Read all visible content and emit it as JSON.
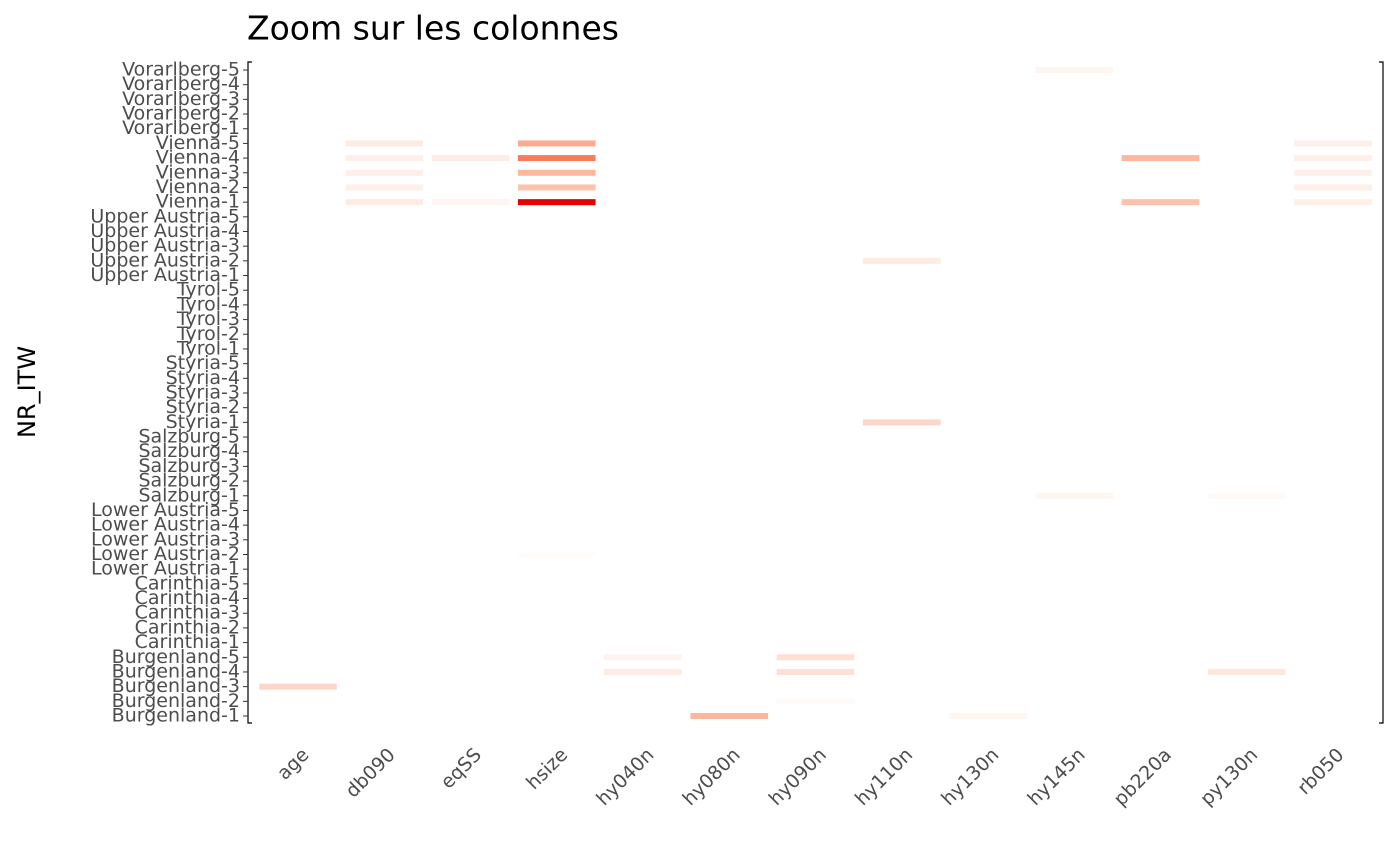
{
  "chart_data": {
    "type": "heatmap",
    "title": "Zoom sur les colonnes",
    "y_label": "NR_ITW",
    "columns": [
      "age",
      "db090",
      "eqSS",
      "hsize",
      "hy040n",
      "hy080n",
      "hy090n",
      "hy110n",
      "hy130n",
      "hy145n",
      "pb220a",
      "py130n",
      "rb050"
    ],
    "rows": [
      "Burgenland-1",
      "Burgenland-2",
      "Burgenland-3",
      "Burgenland-4",
      "Burgenland-5",
      "Carinthia-1",
      "Carinthia-2",
      "Carinthia-3",
      "Carinthia-4",
      "Carinthia-5",
      "Lower Austria-1",
      "Lower Austria-2",
      "Lower Austria-3",
      "Lower Austria-4",
      "Lower Austria-5",
      "Salzburg-1",
      "Salzburg-2",
      "Salzburg-3",
      "Salzburg-4",
      "Salzburg-5",
      "Styria-1",
      "Styria-2",
      "Styria-3",
      "Styria-4",
      "Styria-5",
      "Tyrol-1",
      "Tyrol-2",
      "Tyrol-3",
      "Tyrol-4",
      "Tyrol-5",
      "Upper Austria-1",
      "Upper Austria-2",
      "Upper Austria-3",
      "Upper Austria-4",
      "Upper Austria-5",
      "Vienna-1",
      "Vienna-2",
      "Vienna-3",
      "Vienna-4",
      "Vienna-5",
      "Vorarlberg-1",
      "Vorarlberg-2",
      "Vorarlberg-3",
      "Vorarlberg-4",
      "Vorarlberg-5"
    ],
    "values": [
      [
        0,
        0,
        0,
        0,
        0,
        0.35,
        0,
        0,
        0.05,
        0,
        0,
        0,
        0
      ],
      [
        0,
        0,
        0,
        0,
        0,
        0,
        0.03,
        0,
        0,
        0,
        0,
        0,
        0
      ],
      [
        0.2,
        0,
        0,
        0,
        0,
        0,
        0,
        0,
        0,
        0,
        0,
        0,
        0
      ],
      [
        0,
        0,
        0,
        0,
        0.1,
        0,
        0.15,
        0,
        0,
        0,
        0,
        0.12,
        0
      ],
      [
        0,
        0,
        0,
        0,
        0.06,
        0,
        0.15,
        0,
        0,
        0,
        0,
        0,
        0
      ],
      [
        0,
        0,
        0,
        0,
        0,
        0,
        0,
        0,
        0,
        0,
        0,
        0,
        0
      ],
      [
        0,
        0,
        0,
        0,
        0,
        0,
        0,
        0,
        0,
        0,
        0,
        0,
        0
      ],
      [
        0,
        0,
        0,
        0,
        0,
        0,
        0,
        0,
        0,
        0,
        0,
        0,
        0
      ],
      [
        0,
        0,
        0,
        0,
        0,
        0,
        0,
        0,
        0,
        0,
        0,
        0,
        0
      ],
      [
        0,
        0,
        0,
        0,
        0,
        0,
        0,
        0,
        0,
        0,
        0,
        0,
        0
      ],
      [
        0,
        0,
        0,
        0,
        0,
        0,
        0,
        0,
        0,
        0,
        0,
        0,
        0
      ],
      [
        0,
        0,
        0,
        0.02,
        0,
        0,
        0,
        0,
        0,
        0,
        0,
        0,
        0
      ],
      [
        0,
        0,
        0,
        0,
        0,
        0,
        0,
        0,
        0,
        0,
        0,
        0,
        0
      ],
      [
        0,
        0,
        0,
        0,
        0,
        0,
        0,
        0,
        0,
        0,
        0,
        0,
        0
      ],
      [
        0,
        0,
        0,
        0,
        0,
        0,
        0,
        0,
        0,
        0,
        0,
        0,
        0
      ],
      [
        0,
        0,
        0,
        0,
        0,
        0,
        0,
        0,
        0,
        0.05,
        0,
        0.03,
        0
      ],
      [
        0,
        0,
        0,
        0,
        0,
        0,
        0,
        0,
        0,
        0,
        0,
        0,
        0
      ],
      [
        0,
        0,
        0,
        0,
        0,
        0,
        0,
        0,
        0,
        0,
        0,
        0,
        0
      ],
      [
        0,
        0,
        0,
        0,
        0,
        0,
        0,
        0,
        0,
        0,
        0,
        0,
        0
      ],
      [
        0,
        0,
        0,
        0,
        0,
        0,
        0,
        0,
        0,
        0,
        0,
        0,
        0
      ],
      [
        0,
        0,
        0,
        0,
        0,
        0,
        0,
        0.2,
        0,
        0,
        0,
        0,
        0
      ],
      [
        0,
        0,
        0,
        0,
        0,
        0,
        0,
        0,
        0,
        0,
        0,
        0,
        0
      ],
      [
        0,
        0,
        0,
        0,
        0,
        0,
        0,
        0,
        0,
        0,
        0,
        0,
        0
      ],
      [
        0,
        0,
        0,
        0,
        0,
        0,
        0,
        0,
        0,
        0,
        0,
        0,
        0
      ],
      [
        0,
        0,
        0,
        0,
        0,
        0,
        0,
        0,
        0,
        0,
        0,
        0,
        0
      ],
      [
        0,
        0,
        0,
        0,
        0,
        0,
        0,
        0,
        0,
        0,
        0,
        0,
        0
      ],
      [
        0,
        0,
        0,
        0,
        0,
        0,
        0,
        0,
        0,
        0,
        0,
        0,
        0
      ],
      [
        0,
        0,
        0,
        0,
        0,
        0,
        0,
        0,
        0,
        0,
        0,
        0,
        0
      ],
      [
        0,
        0,
        0,
        0,
        0,
        0,
        0,
        0,
        0,
        0,
        0,
        0,
        0
      ],
      [
        0,
        0,
        0,
        0,
        0,
        0,
        0,
        0,
        0,
        0,
        0,
        0,
        0
      ],
      [
        0,
        0,
        0,
        0,
        0,
        0,
        0,
        0,
        0,
        0,
        0,
        0,
        0
      ],
      [
        0,
        0,
        0,
        0,
        0,
        0,
        0,
        0.1,
        0,
        0,
        0,
        0,
        0
      ],
      [
        0,
        0,
        0,
        0,
        0,
        0,
        0,
        0,
        0,
        0,
        0,
        0,
        0
      ],
      [
        0,
        0,
        0,
        0,
        0,
        0,
        0,
        0,
        0,
        0,
        0,
        0,
        0
      ],
      [
        0,
        0,
        0,
        0,
        0,
        0,
        0,
        0,
        0,
        0,
        0,
        0,
        0
      ],
      [
        0,
        0.1,
        0.05,
        1,
        0,
        0,
        0,
        0,
        0,
        0,
        0.3,
        0,
        0.08
      ],
      [
        0,
        0.08,
        0,
        0.3,
        0,
        0,
        0,
        0,
        0,
        0,
        0,
        0,
        0.08
      ],
      [
        0,
        0.08,
        0,
        0.35,
        0,
        0,
        0,
        0,
        0,
        0,
        0,
        0,
        0.08
      ],
      [
        0,
        0.08,
        0.1,
        0.6,
        0,
        0,
        0,
        0,
        0,
        0,
        0.35,
        0,
        0.08
      ],
      [
        0,
        0.1,
        0,
        0.4,
        0,
        0,
        0,
        0,
        0,
        0,
        0,
        0,
        0.08
      ],
      [
        0,
        0,
        0,
        0,
        0,
        0,
        0,
        0,
        0,
        0,
        0,
        0,
        0
      ],
      [
        0,
        0,
        0,
        0,
        0,
        0,
        0,
        0,
        0,
        0,
        0,
        0,
        0
      ],
      [
        0,
        0,
        0,
        0,
        0,
        0,
        0,
        0,
        0,
        0,
        0,
        0,
        0
      ],
      [
        0,
        0,
        0,
        0,
        0,
        0,
        0,
        0,
        0,
        0,
        0,
        0,
        0
      ],
      [
        0,
        0,
        0,
        0,
        0,
        0,
        0,
        0,
        0,
        0.05,
        0,
        0,
        0
      ]
    ],
    "colors": [
      "#ffffff",
      "#fcbba1",
      "#fb6a4a",
      "#e60000"
    ]
  }
}
